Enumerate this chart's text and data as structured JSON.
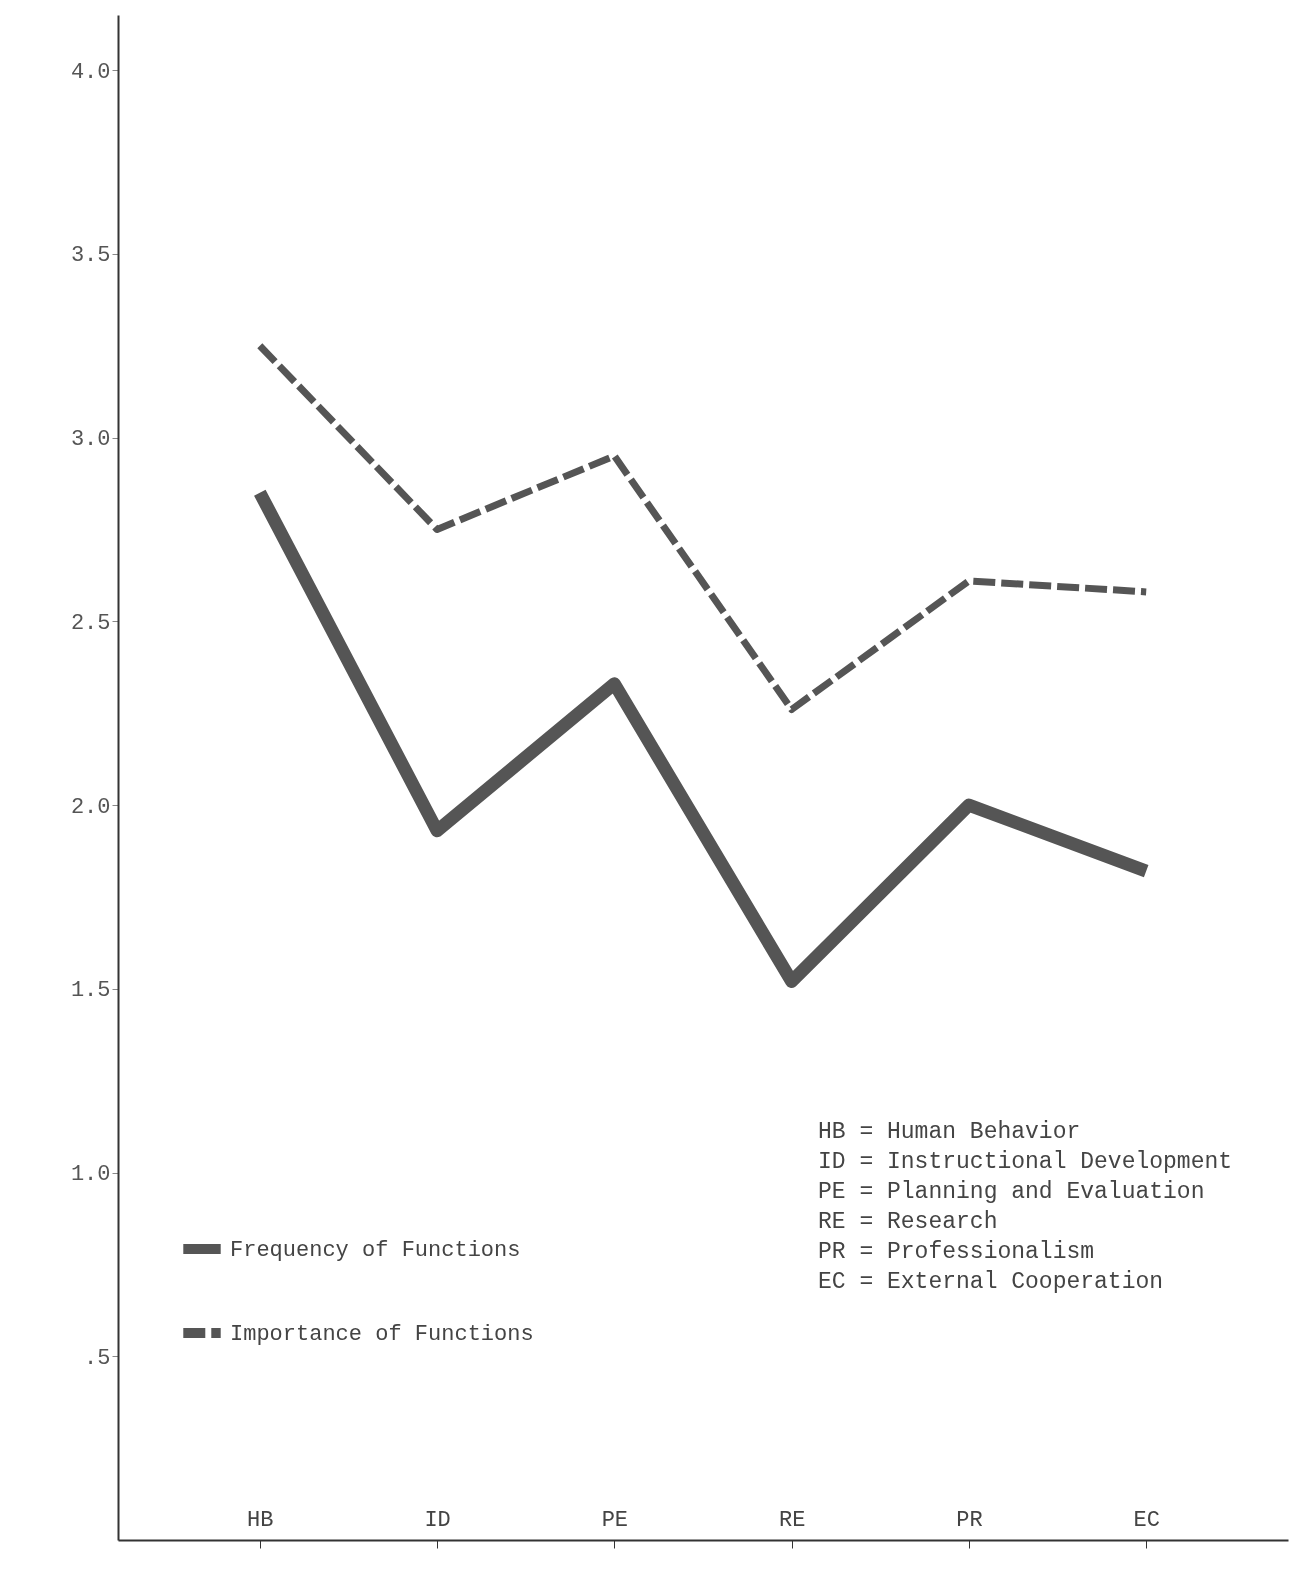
{
  "chart_data": {
    "type": "line",
    "categories": [
      "HB",
      "ID",
      "PE",
      "RE",
      "PR",
      "EC"
    ],
    "series": [
      {
        "name": "Frequency of Functions",
        "color": "#555555",
        "values": [
          2.85,
          1.93,
          2.33,
          1.52,
          2.0,
          1.82
        ],
        "line_style": "solid"
      },
      {
        "name": "Importance of Functions",
        "color": "#555555",
        "values": [
          3.25,
          2.75,
          2.95,
          2.26,
          2.61,
          2.58
        ],
        "line_style": "dashed"
      }
    ],
    "ylim": [
      0,
      4.15
    ],
    "yticks": [
      {
        "value": 0.5,
        "label": ".5"
      },
      {
        "value": 1,
        "label": "1.0"
      },
      {
        "value": 1.5,
        "label": "1.5"
      },
      {
        "value": 2,
        "label": "2.0"
      },
      {
        "value": 2.5,
        "label": "2.5"
      },
      {
        "value": 3,
        "label": "3.0"
      },
      {
        "value": 3.5,
        "label": "3.5"
      },
      {
        "value": 4,
        "label": "4.0"
      }
    ],
    "grid": false,
    "legend": "bottom left",
    "marker": "none",
    "annotations": [
      "HB = Human Behavior",
      "ID = Instructional Development",
      "PE = Planning and Evaluation",
      "RE = Research",
      "PR = Professionalism",
      "EC = External Cooperation"
    ]
  }
}
